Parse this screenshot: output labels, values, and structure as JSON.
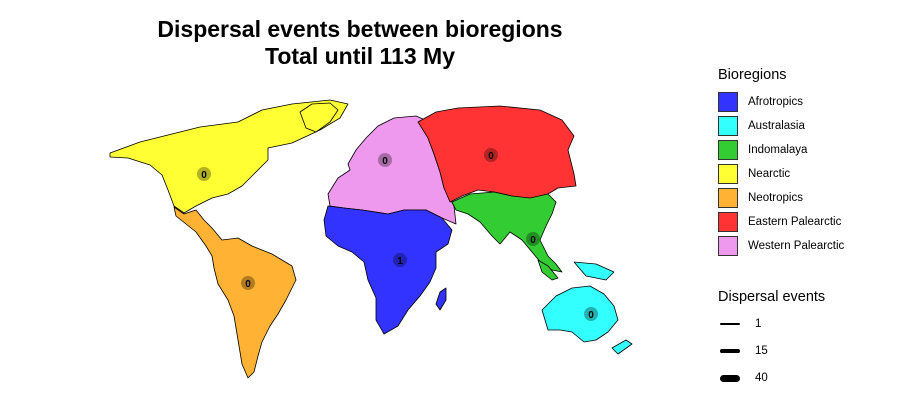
{
  "title_line1": "Dispersal events between bioregions",
  "title_line2": "Total until 113 My",
  "legend": {
    "title": "Bioregions",
    "items": [
      {
        "label": "Afrotropics",
        "color": "#3333ff"
      },
      {
        "label": "Australasia",
        "color": "#33ffff"
      },
      {
        "label": "Indomalaya",
        "color": "#33cc33"
      },
      {
        "label": "Nearctic",
        "color": "#ffff33"
      },
      {
        "label": "Neotropics",
        "color": "#ffb233"
      },
      {
        "label": "Eastern Palearctic",
        "color": "#ff3333"
      },
      {
        "label": "Western Palearctic",
        "color": "#ee99ee"
      }
    ]
  },
  "dispersal_legend": {
    "title": "Dispersal events",
    "items": [
      {
        "label": "1",
        "value": 1
      },
      {
        "label": "15",
        "value": 15
      },
      {
        "label": "40",
        "value": 40
      }
    ]
  },
  "region_counts": {
    "nearctic": "0",
    "western_palearctic": "0",
    "eastern_palearctic": "0",
    "indomalaya": "0",
    "afrotropics": "1",
    "neotropics": "0",
    "australasia": "0"
  }
}
